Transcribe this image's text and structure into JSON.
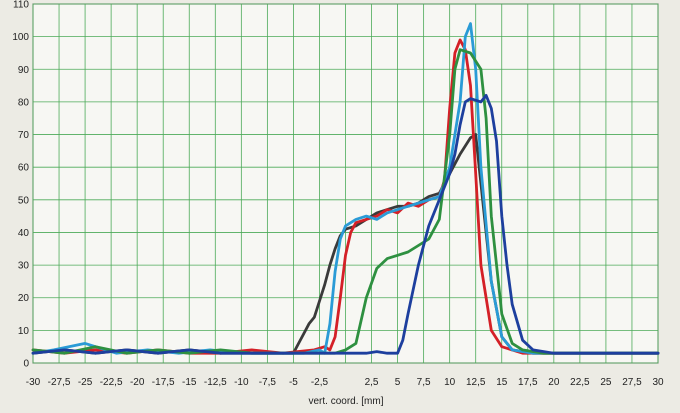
{
  "chart_data": {
    "type": "line",
    "title": "",
    "xlabel": "vert. coord. [mm]",
    "ylabel": "",
    "xlim": [
      -30,
      30
    ],
    "ylim": [
      0,
      110
    ],
    "grid": true,
    "x_ticks": [
      "-30",
      "-27,5",
      "-25",
      "-22,5",
      "-20",
      "-17,5",
      "-15",
      "-12,5",
      "-10",
      "-7,5",
      "-5",
      "-2,5",
      "",
      "2,5",
      "5",
      "7,5",
      "10",
      "12,5",
      "15",
      "17,5",
      "20",
      "22,5",
      "25",
      "27,5",
      "30"
    ],
    "y_ticks": [
      "0",
      "10",
      "20",
      "30",
      "40",
      "50",
      "60",
      "70",
      "80",
      "90",
      "100",
      "110"
    ],
    "series": [
      {
        "color": "#3a3a3a",
        "points": [
          [
            -30,
            3
          ],
          [
            -27,
            4
          ],
          [
            -24,
            3
          ],
          [
            -21,
            4
          ],
          [
            -18,
            3
          ],
          [
            -15,
            4
          ],
          [
            -12,
            3
          ],
          [
            -9,
            3
          ],
          [
            -6,
            3
          ],
          [
            -5,
            3
          ],
          [
            -4.5,
            6
          ],
          [
            -4,
            9
          ],
          [
            -3.5,
            12
          ],
          [
            -3,
            14
          ],
          [
            -2.5,
            19
          ],
          [
            -2,
            24
          ],
          [
            -1.5,
            30
          ],
          [
            -1,
            35
          ],
          [
            -0.5,
            39
          ],
          [
            0,
            41
          ],
          [
            1,
            42
          ],
          [
            2,
            44
          ],
          [
            3,
            46
          ],
          [
            4,
            47
          ],
          [
            5,
            48
          ],
          [
            6,
            48
          ],
          [
            7,
            49
          ],
          [
            8,
            51
          ],
          [
            9,
            52
          ],
          [
            10,
            58
          ],
          [
            11,
            64
          ],
          [
            12,
            69
          ],
          [
            12.5,
            70
          ],
          [
            13,
            55
          ],
          [
            14,
            25
          ],
          [
            15,
            8
          ],
          [
            16,
            4
          ],
          [
            18,
            3
          ],
          [
            20,
            3
          ],
          [
            22,
            3
          ],
          [
            24,
            3
          ],
          [
            26,
            3
          ],
          [
            28,
            3
          ],
          [
            30,
            3
          ]
        ]
      },
      {
        "color": "#d42027",
        "points": [
          [
            -30,
            4
          ],
          [
            -27,
            3
          ],
          [
            -24,
            4
          ],
          [
            -21,
            3
          ],
          [
            -18,
            4
          ],
          [
            -15,
            3
          ],
          [
            -12,
            3
          ],
          [
            -9,
            4
          ],
          [
            -6,
            3
          ],
          [
            -3,
            4
          ],
          [
            -2,
            5
          ],
          [
            -1.5,
            4
          ],
          [
            -1,
            8
          ],
          [
            -0.5,
            20
          ],
          [
            0,
            33
          ],
          [
            0.5,
            40
          ],
          [
            1,
            43
          ],
          [
            2,
            44
          ],
          [
            3,
            45
          ],
          [
            4,
            47
          ],
          [
            5,
            46
          ],
          [
            6,
            49
          ],
          [
            7,
            48
          ],
          [
            8,
            50
          ],
          [
            9,
            51
          ],
          [
            9.5,
            56
          ],
          [
            10,
            78
          ],
          [
            10.5,
            95
          ],
          [
            11,
            99
          ],
          [
            11.5,
            96
          ],
          [
            12,
            85
          ],
          [
            12.5,
            58
          ],
          [
            13,
            30
          ],
          [
            14,
            10
          ],
          [
            15,
            5
          ],
          [
            17,
            3
          ],
          [
            20,
            3
          ],
          [
            23,
            3
          ],
          [
            26,
            3
          ],
          [
            30,
            3
          ]
        ]
      },
      {
        "color": "#2a9bd6",
        "points": [
          [
            -30,
            3
          ],
          [
            -28,
            4
          ],
          [
            -25,
            6
          ],
          [
            -22,
            3
          ],
          [
            -19,
            4
          ],
          [
            -16,
            3
          ],
          [
            -13,
            4
          ],
          [
            -10,
            3
          ],
          [
            -7,
            3
          ],
          [
            -4,
            3
          ],
          [
            -2.5,
            4
          ],
          [
            -2,
            3
          ],
          [
            -1.5,
            12
          ],
          [
            -1,
            28
          ],
          [
            -0.5,
            38
          ],
          [
            0,
            42
          ],
          [
            1,
            44
          ],
          [
            2,
            45
          ],
          [
            3,
            44
          ],
          [
            4,
            46
          ],
          [
            5,
            47
          ],
          [
            6,
            48
          ],
          [
            7,
            49
          ],
          [
            8,
            50
          ],
          [
            9,
            51
          ],
          [
            10,
            60
          ],
          [
            11,
            80
          ],
          [
            11.5,
            100
          ],
          [
            12,
            104
          ],
          [
            12.5,
            90
          ],
          [
            13,
            60
          ],
          [
            14,
            25
          ],
          [
            15,
            8
          ],
          [
            16,
            4
          ],
          [
            18,
            3
          ],
          [
            20,
            3
          ],
          [
            23,
            3
          ],
          [
            26,
            3
          ],
          [
            30,
            3
          ]
        ]
      },
      {
        "color": "#2e9040",
        "points": [
          [
            -30,
            4
          ],
          [
            -27,
            3
          ],
          [
            -24,
            5
          ],
          [
            -21,
            3
          ],
          [
            -18,
            4
          ],
          [
            -15,
            3
          ],
          [
            -12,
            4
          ],
          [
            -9,
            3
          ],
          [
            -6,
            3
          ],
          [
            -3,
            3
          ],
          [
            -1,
            3
          ],
          [
            0,
            4
          ],
          [
            1,
            6
          ],
          [
            2,
            20
          ],
          [
            3,
            29
          ],
          [
            4,
            32
          ],
          [
            5,
            33
          ],
          [
            6,
            34
          ],
          [
            7,
            36
          ],
          [
            8,
            38
          ],
          [
            9,
            44
          ],
          [
            10,
            70
          ],
          [
            10.5,
            90
          ],
          [
            11,
            96
          ],
          [
            12,
            95
          ],
          [
            13,
            90
          ],
          [
            13.5,
            75
          ],
          [
            14,
            45
          ],
          [
            15,
            15
          ],
          [
            16,
            6
          ],
          [
            17,
            4
          ],
          [
            19,
            3
          ],
          [
            22,
            3
          ],
          [
            25,
            3
          ],
          [
            28,
            3
          ],
          [
            30,
            3
          ]
        ]
      },
      {
        "color": "#1d3f9e",
        "points": [
          [
            -30,
            3
          ],
          [
            -27,
            4
          ],
          [
            -24,
            3
          ],
          [
            -21,
            4
          ],
          [
            -18,
            3
          ],
          [
            -15,
            4
          ],
          [
            -12,
            3
          ],
          [
            -9,
            3
          ],
          [
            -6,
            3
          ],
          [
            -3,
            3
          ],
          [
            0,
            3
          ],
          [
            2,
            3
          ],
          [
            3,
            3.5
          ],
          [
            4,
            3
          ],
          [
            5,
            3
          ],
          [
            5.5,
            7
          ],
          [
            6,
            15
          ],
          [
            7,
            30
          ],
          [
            8,
            42
          ],
          [
            9,
            50
          ],
          [
            10,
            58
          ],
          [
            10.5,
            64
          ],
          [
            11,
            73
          ],
          [
            11.5,
            80
          ],
          [
            12,
            81
          ],
          [
            13,
            80
          ],
          [
            13.5,
            82
          ],
          [
            14,
            78
          ],
          [
            14.5,
            68
          ],
          [
            15,
            45
          ],
          [
            15.5,
            30
          ],
          [
            16,
            18
          ],
          [
            17,
            7
          ],
          [
            18,
            4
          ],
          [
            20,
            3
          ],
          [
            23,
            3
          ],
          [
            26,
            3
          ],
          [
            30,
            3
          ]
        ]
      }
    ]
  }
}
